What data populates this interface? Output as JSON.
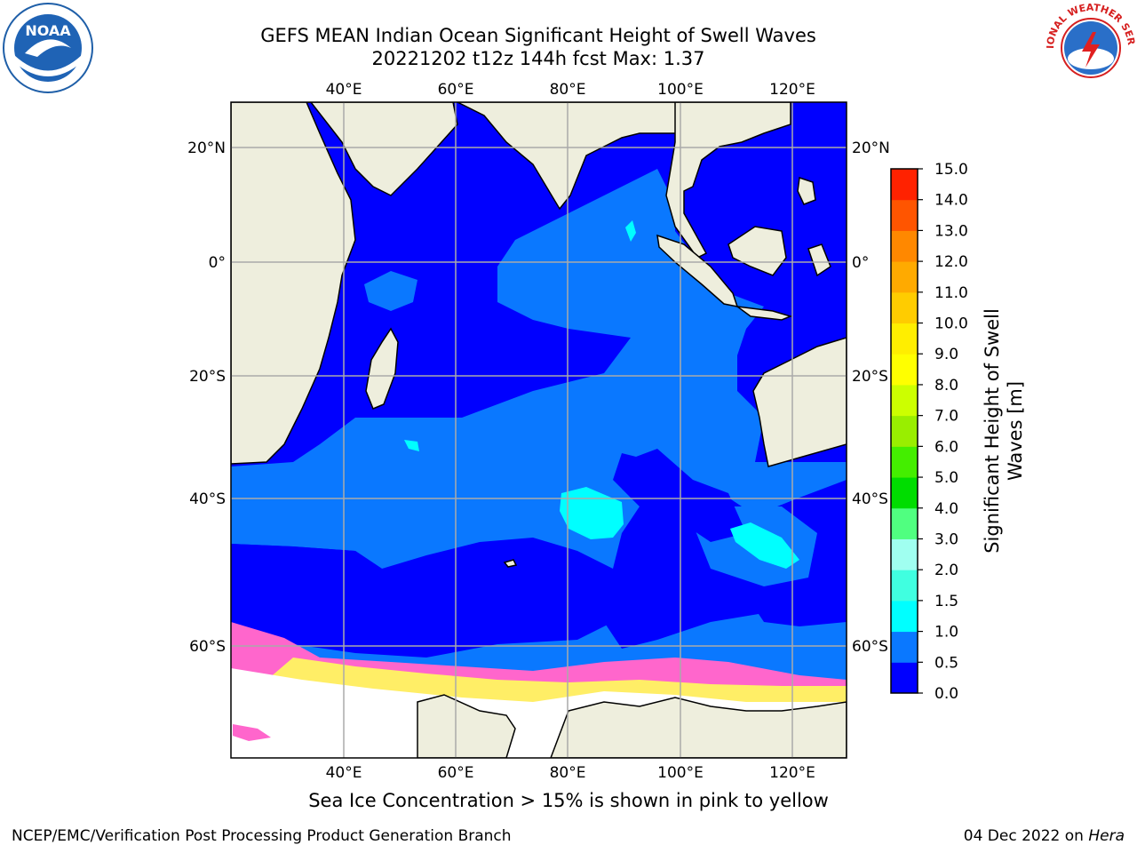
{
  "title_line1": "GEFS MEAN Indian Ocean Significant Height of Swell Waves",
  "title_line2": "20221202 t12z 144h fcst   Max: 1.37",
  "lon_labels": [
    "40°E",
    "60°E",
    "80°E",
    "100°E",
    "120°E"
  ],
  "lat_labels": [
    "20°N",
    "0°",
    "20°S",
    "40°S",
    "60°S"
  ],
  "map_extent": {
    "lon": [
      20,
      130
    ],
    "lat": [
      -72,
      28
    ]
  },
  "colorbar": {
    "title_line1": "Significant Height of Swell",
    "title_line2": "Waves [m]",
    "ticks": [
      "0.0",
      "0.5",
      "1.0",
      "1.5",
      "2.0",
      "3.0",
      "4.0",
      "5.0",
      "6.0",
      "7.0",
      "8.0",
      "9.0",
      "10.0",
      "11.0",
      "12.0",
      "13.0",
      "14.0",
      "15.0"
    ],
    "colors": [
      "#0000ff",
      "#0a78ff",
      "#00ffff",
      "#40ffe0",
      "#a0fff0",
      "#50ff80",
      "#00dd00",
      "#44ee00",
      "#99ee00",
      "#ccff00",
      "#ffff00",
      "#ffee00",
      "#ffcc00",
      "#ffaa00",
      "#ff8800",
      "#ff5500",
      "#ff2200"
    ]
  },
  "legend_note": "Sea Ice Concentration > 15% is shown in pink to yellow",
  "credit": "NCEP/EMC/Verification Post Processing Product Generation Branch",
  "date": "04 Dec 2022 on ",
  "machine": "Hera",
  "logos": {
    "left": "NOAA",
    "right": "NATIONAL WEATHER SERVICE"
  },
  "colors": {
    "land": "#eeeedd",
    "ocean_low": "#0000ff",
    "ocean_mid": "#0a78ff",
    "cyan": "#00ffff",
    "ice_pink": "#ff66cc",
    "ice_yellow": "#ffee66"
  }
}
